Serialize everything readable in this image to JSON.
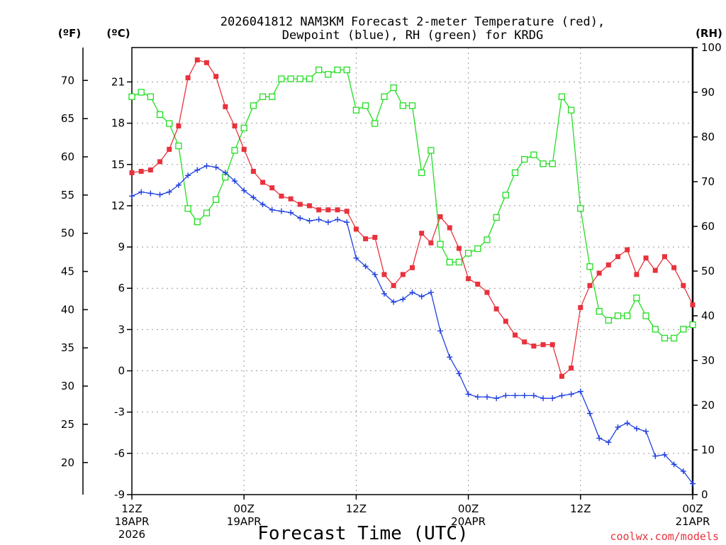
{
  "chart_data": {
    "type": "line",
    "title_lines": [
      "2026041812 NAM3KM Forecast 2-meter Temperature (red),",
      "Dewpoint (blue), RH (green) for KRDG"
    ],
    "xlabel": "Forecast Time (UTC)",
    "left_unit_f": "(ºF)",
    "left_unit_c": "(ºC)",
    "right_unit": "(RH)",
    "y_c_range": [
      -9,
      23.5
    ],
    "y_c_ticks": [
      "21",
      "18",
      "15",
      "12",
      "9",
      "6",
      "3",
      "0",
      "-3",
      "-6",
      "-9"
    ],
    "y_f_ticks": [
      "70",
      "65",
      "60",
      "55",
      "50",
      "45",
      "40",
      "35",
      "30",
      "25",
      "20"
    ],
    "y_rh_range": [
      0,
      100
    ],
    "y_rh_ticks": [
      "100",
      "90",
      "80",
      "70",
      "60",
      "50",
      "40",
      "30",
      "20",
      "10",
      "0"
    ],
    "x_range_hours": [
      0,
      60
    ],
    "x_ticks": [
      {
        "hour": 0,
        "l1": "12Z",
        "l2": "18APR",
        "l3": "2026"
      },
      {
        "hour": 12,
        "l1": "00Z",
        "l2": "19APR",
        "l3": ""
      },
      {
        "hour": 24,
        "l1": "12Z",
        "l2": "",
        "l3": ""
      },
      {
        "hour": 36,
        "l1": "00Z",
        "l2": "20APR",
        "l3": ""
      },
      {
        "hour": 48,
        "l1": "12Z",
        "l2": "",
        "l3": ""
      },
      {
        "hour": 60,
        "l1": "00Z",
        "l2": "21APR",
        "l3": ""
      }
    ],
    "credit": "coolwx.com/models",
    "series": [
      {
        "name": "Temperature",
        "color": "#e8323c",
        "axis": "c",
        "marker": "filled-square",
        "values": [
          14.4,
          14.5,
          14.6,
          15.2,
          16.1,
          17.8,
          21.3,
          22.6,
          22.4,
          21.4,
          19.2,
          17.8,
          16.1,
          14.5,
          13.7,
          13.3,
          12.7,
          12.5,
          12.1,
          12.0,
          11.7,
          11.7,
          11.7,
          11.6,
          10.3,
          9.6,
          9.7,
          7.0,
          6.2,
          7.0,
          7.5,
          10.0,
          9.3,
          11.2,
          10.4,
          8.9,
          6.7,
          6.3,
          5.7,
          4.5,
          3.6,
          2.6,
          2.1,
          1.8,
          1.9,
          1.9,
          -0.4,
          0.2,
          4.6,
          6.2,
          7.1,
          7.7,
          8.3,
          8.8,
          7.0,
          8.2,
          7.3,
          8.3,
          7.5,
          6.2,
          4.8
        ]
      },
      {
        "name": "Dewpoint",
        "color": "#2040e0",
        "axis": "c",
        "marker": "plus",
        "values": [
          12.7,
          13.0,
          12.9,
          12.8,
          13.0,
          13.5,
          14.2,
          14.6,
          14.9,
          14.8,
          14.4,
          13.8,
          13.1,
          12.6,
          12.1,
          11.7,
          11.6,
          11.5,
          11.1,
          10.9,
          11.0,
          10.8,
          11.0,
          10.8,
          8.2,
          7.6,
          7.0,
          5.6,
          5.0,
          5.2,
          5.7,
          5.4,
          5.7,
          2.9,
          1.0,
          -0.2,
          -1.7,
          -1.9,
          -1.9,
          -2.0,
          -1.8,
          -1.8,
          -1.8,
          -1.8,
          -2.0,
          -2.0,
          -1.8,
          -1.7,
          -1.5,
          -3.1,
          -4.9,
          -5.2,
          -4.1,
          -3.8,
          -4.2,
          -4.4,
          -6.2,
          -6.1,
          -6.8,
          -7.3,
          -8.2
        ]
      },
      {
        "name": "RH",
        "color": "#22dd22",
        "axis": "rh",
        "marker": "open-square",
        "values": [
          89,
          90,
          89,
          85,
          83,
          78,
          64,
          61,
          63,
          66,
          71,
          77,
          82,
          87,
          89,
          89,
          93,
          93,
          93,
          93,
          95,
          94,
          95,
          95,
          86,
          87,
          83,
          89,
          91,
          87,
          87,
          72,
          77,
          56,
          52,
          52,
          54,
          55,
          57,
          62,
          67,
          72,
          75,
          76,
          74,
          74,
          89,
          86,
          64,
          51,
          41,
          39,
          40,
          40,
          44,
          40,
          37,
          35,
          35,
          37,
          38
        ]
      }
    ]
  }
}
